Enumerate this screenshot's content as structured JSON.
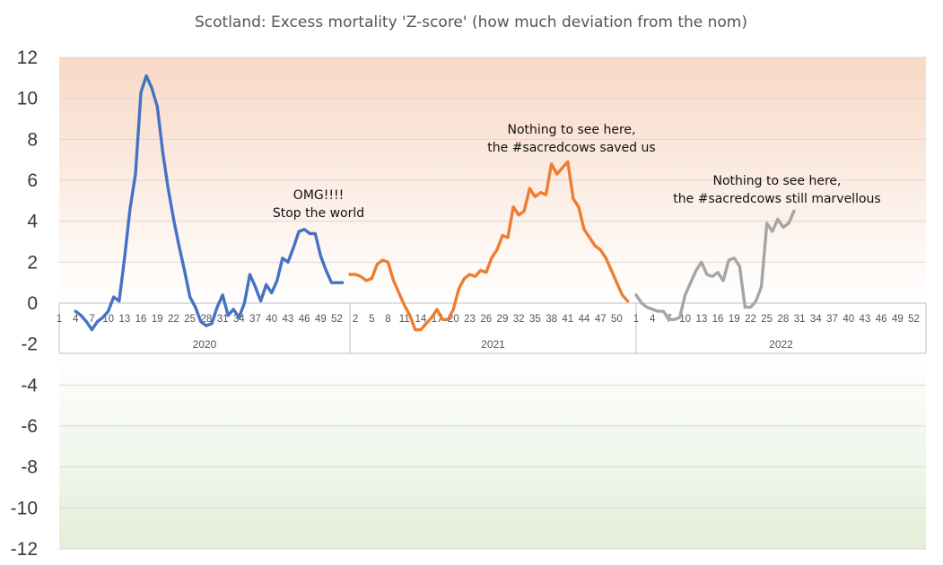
{
  "chart_data": {
    "type": "line",
    "title": "Scotland: Excess mortality 'Z-score' (how much deviation from the nom)",
    "ylim": [
      -12,
      12
    ],
    "yticks": [
      12,
      10,
      8,
      6,
      4,
      2,
      0,
      -2,
      -4,
      -6,
      -8,
      -10,
      -12
    ],
    "years": [
      "2020",
      "2021",
      "2022"
    ],
    "week_tick_labels": [
      "1",
      "4",
      "7",
      "10",
      "13",
      "16",
      "19",
      "22",
      "25",
      "28",
      "31",
      "34",
      "37",
      "40",
      "43",
      "46",
      "49",
      "52"
    ],
    "week_tick_labels_2021": [
      "2",
      "5",
      "8",
      "11",
      "14",
      "17",
      "20",
      "23",
      "26",
      "29",
      "32",
      "35",
      "38",
      "41",
      "44",
      "47",
      "50"
    ],
    "week_tick_labels_2022": [
      "1",
      "4",
      "7",
      "10",
      "13",
      "16",
      "19",
      "22",
      "25",
      "28",
      "31",
      "34",
      "37",
      "40",
      "43",
      "46",
      "49",
      "52"
    ],
    "colors": {
      "2020": "#4472C4",
      "2021": "#ED7D31",
      "2022": "#A5A5A5",
      "bg_top": "#F8D9C6",
      "bg_bottom": "#E3EFD9",
      "grid": "#D9D9D9"
    },
    "series": [
      {
        "year": "2020",
        "weeks": [
          4,
          5,
          6,
          7,
          8,
          9,
          10,
          11,
          12,
          13,
          14,
          15,
          16,
          17,
          18,
          19,
          20,
          21,
          22,
          23,
          24,
          25,
          26,
          27,
          28,
          29,
          30,
          31,
          32,
          33,
          34,
          35,
          36,
          37,
          38,
          39,
          40,
          41,
          42,
          43,
          44,
          45,
          46,
          47,
          48,
          49,
          50,
          51,
          52,
          53
        ],
        "values": [
          -0.4,
          -0.6,
          -0.9,
          -1.3,
          -0.9,
          -0.7,
          -0.4,
          0.3,
          0.1,
          2.2,
          4.6,
          6.3,
          10.3,
          11.1,
          10.5,
          9.6,
          7.4,
          5.6,
          4.1,
          2.8,
          1.6,
          0.3,
          -0.2,
          -0.9,
          -1.1,
          -1.0,
          -0.2,
          0.4,
          -0.6,
          -0.3,
          -0.7,
          0.0,
          1.4,
          0.8,
          0.1,
          0.9,
          0.5,
          1.1,
          2.2,
          2.0,
          2.7,
          3.5,
          3.6,
          3.4,
          3.4,
          2.3,
          1.6,
          1.0,
          1.0,
          1.0
        ]
      },
      {
        "year": "2021",
        "weeks": [
          1,
          2,
          3,
          4,
          5,
          6,
          7,
          8,
          9,
          10,
          11,
          12,
          13,
          14,
          15,
          16,
          17,
          18,
          19,
          20,
          21,
          22,
          23,
          24,
          25,
          26,
          27,
          28,
          29,
          30,
          31,
          32,
          33,
          34,
          35,
          36,
          37,
          38,
          39,
          40,
          41,
          42,
          43,
          44,
          45,
          46,
          47,
          48,
          49,
          50,
          51,
          52
        ],
        "values": [
          1.4,
          1.4,
          1.3,
          1.1,
          1.2,
          1.9,
          2.1,
          2.0,
          1.1,
          0.5,
          -0.1,
          -0.6,
          -1.3,
          -1.3,
          -1.0,
          -0.7,
          -0.3,
          -0.8,
          -0.8,
          -0.3,
          0.7,
          1.2,
          1.4,
          1.3,
          1.6,
          1.5,
          2.2,
          2.6,
          3.3,
          3.2,
          4.7,
          4.3,
          4.5,
          5.6,
          5.2,
          5.4,
          5.3,
          6.8,
          6.3,
          6.6,
          6.9,
          5.1,
          4.7,
          3.6,
          3.2,
          2.8,
          2.6,
          2.2,
          1.6,
          1.0,
          0.4,
          0.1
        ]
      },
      {
        "year": "2022",
        "weeks": [
          1,
          2,
          3,
          4,
          5,
          6,
          7,
          8,
          9,
          10,
          11,
          12,
          13,
          14,
          15,
          16,
          17,
          18,
          19,
          20,
          21,
          22,
          23,
          24,
          25,
          26,
          27,
          28,
          29,
          30
        ],
        "values": [
          0.4,
          0.0,
          -0.2,
          -0.3,
          -0.4,
          -0.4,
          -0.8,
          -0.8,
          -0.7,
          0.4,
          1.0,
          1.6,
          2.0,
          1.4,
          1.3,
          1.5,
          1.1,
          2.1,
          2.2,
          1.8,
          -0.2,
          -0.2,
          0.1,
          0.8,
          3.9,
          3.5,
          4.1,
          3.7,
          3.9,
          4.5
        ]
      }
    ],
    "annotations": [
      {
        "lines": [
          "OMG!!!!",
          "Stop the world"
        ]
      },
      {
        "lines": [
          "Nothing to see here,",
          "the #sacredcows saved us"
        ]
      },
      {
        "lines": [
          "Nothing to see here,",
          "the #sacredcows still marvellous"
        ]
      }
    ]
  }
}
